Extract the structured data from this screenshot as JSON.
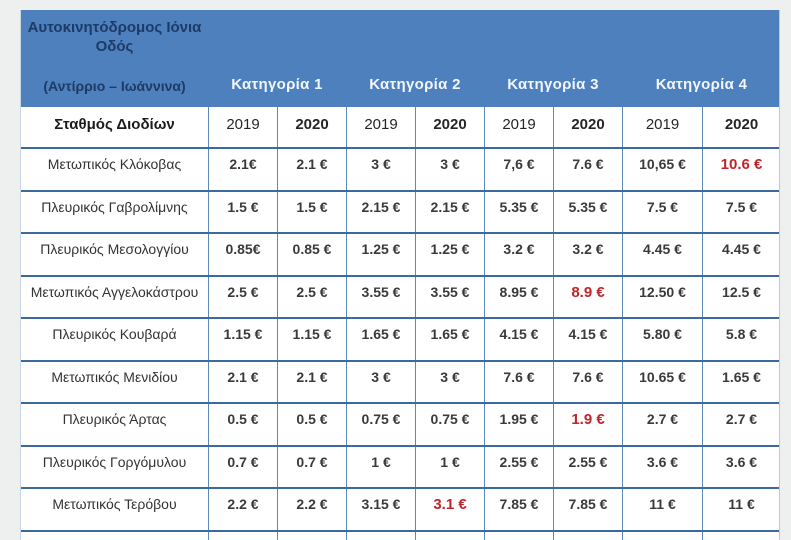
{
  "table": {
    "colors": {
      "header_bg": "#4d80bd",
      "header_title": "#1e3a66",
      "header_label": "#f3f7fd",
      "grid": "#3a6b9c",
      "vline": "#5d8ab8",
      "text": "#333333",
      "red": "#c0242b",
      "page_bg": "#eef0ef"
    },
    "title_line1": "Αυτοκινητόδρομος Ιόνια",
    "title_line2": "Οδός",
    "subtitle": "(Αντίρριο – Ιωάννινα)",
    "categories": [
      "Κατηγορία  1",
      "Κατηγορία 2",
      "Κατηγορία 3",
      "Κατηγορία 4"
    ],
    "station_header": "Σταθμός Διοδίων",
    "year_headers": [
      "2019",
      "2020",
      "2019",
      "2020",
      "2019",
      "2020",
      "2019",
      "2020"
    ],
    "rows": [
      {
        "station": "Μετωπικός Κλόκοβας",
        "values": [
          "2.1€",
          "2.1 €",
          "3 €",
          "3 €",
          "7,6 €",
          "7.6 €",
          "10,65 €",
          {
            "text": "10.6 €",
            "red": true
          }
        ]
      },
      {
        "station": "Πλευρικός Γαβρολίμνης",
        "values": [
          "1.5 €",
          "1.5 €",
          "2.15 €",
          "2.15 €",
          "5.35 €",
          "5.35 €",
          "7.5 €",
          "7.5 €"
        ]
      },
      {
        "station": "Πλευρικός Μεσολογγίου",
        "values": [
          "0.85€",
          "0.85 €",
          "1.25 €",
          "1.25 €",
          "3.2 €",
          "3.2 €",
          "4.45 €",
          "4.45 €"
        ]
      },
      {
        "station": "Μετωπικός Αγγελοκάστρου",
        "values": [
          "2.5 €",
          "2.5 €",
          "3.55 €",
          "3.55 €",
          "8.95 €",
          {
            "text": "8.9 €",
            "red": true
          },
          "12.50 €",
          "12.5 €"
        ]
      },
      {
        "station": "Πλευρικός Κουβαρά",
        "values": [
          "1.15 €",
          "1.15 €",
          "1.65 €",
          "1.65 €",
          "4.15 €",
          "4.15 €",
          "5.80 €",
          "5.8 €"
        ]
      },
      {
        "station": "Μετωπικός Μενιδίου",
        "values": [
          "2.1 €",
          "2.1 €",
          "3 €",
          "3 €",
          "7.6 €",
          "7.6 €",
          "10.65 €",
          "1.65 €"
        ]
      },
      {
        "station": "Πλευρικός Άρτας",
        "values": [
          "0.5 €",
          "0.5 €",
          "0.75 €",
          "0.75 €",
          "1.95 €",
          {
            "text": "1.9 €",
            "red": true
          },
          "2.7 €",
          "2.7 €"
        ]
      },
      {
        "station": "Πλευρικός Γοργόμυλου",
        "values": [
          "0.7 €",
          "0.7 €",
          "1 €",
          "1 €",
          "2.55 €",
          "2.55 €",
          "3.6 €",
          "3.6 €"
        ]
      },
      {
        "station": "Μετωπικός Τερόβου",
        "values": [
          "2.2 €",
          "2.2 €",
          "3.15 €",
          {
            "text": "3.1 €",
            "red": true
          },
          "7.85 €",
          "7.85 €",
          "11 €",
          "11 €"
        ]
      }
    ]
  }
}
